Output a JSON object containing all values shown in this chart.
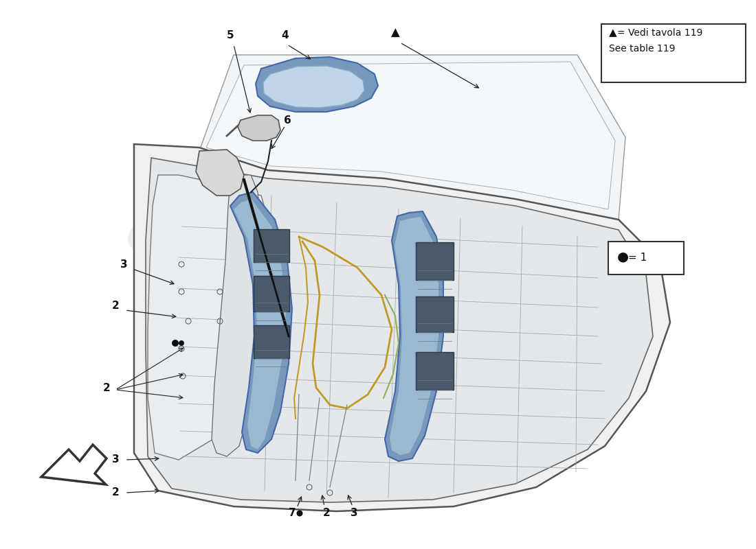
{
  "bg_color": "#ffffff",
  "legend1_text1": "▲ = Vedi tavola 119",
  "legend1_text2": "See table 119",
  "legend2_text": "● = 1",
  "arrow_color": "#1a1a1a",
  "door_outer_color": "#dddddd",
  "door_inner_color": "#e8e8e8",
  "window_color": "#f0f4f8",
  "rail_color_dark": "#5577aa",
  "rail_color_light": "#8ab0d0",
  "motor_color": "#556677",
  "wire_color_gold": "#c8a020",
  "wire_color_green": "#88aa44",
  "mirror_blue": "#7799bb",
  "mirror_light": "#b8ccdd",
  "watermark_color1": "#cccccc",
  "watermark_color2": "#d4cc88"
}
